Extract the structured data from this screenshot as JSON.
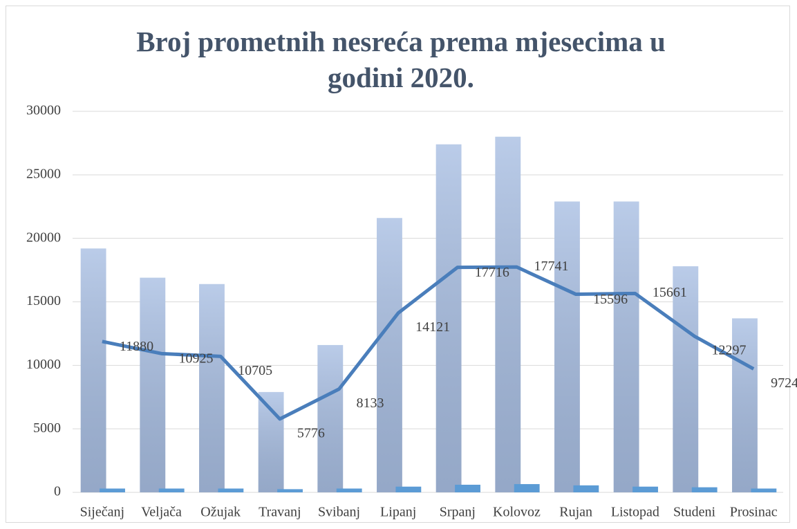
{
  "chart_data": {
    "type": "bar_line",
    "title": "Broj prometnih nesreća prema mjesecima u godini 2020.",
    "categories": [
      "Siječanj",
      "Veljača",
      "Ožujak",
      "Travanj",
      "Svibanj",
      "Lipanj",
      "Srpanj",
      "Kolovoz",
      "Rujan",
      "Listopad",
      "Studeni",
      "Prosinac"
    ],
    "series": [
      {
        "type": "bar",
        "color": "#a9bfe3",
        "values": [
          19200,
          16900,
          16400,
          7900,
          11600,
          21600,
          27400,
          28000,
          22900,
          22900,
          17800,
          13700
        ]
      },
      {
        "type": "bar",
        "color": "#5b9bd5",
        "values": [
          300,
          300,
          300,
          250,
          300,
          450,
          600,
          650,
          550,
          450,
          400,
          300
        ]
      },
      {
        "type": "line",
        "color": "#4a7ebb",
        "values": [
          11880,
          10925,
          10705,
          5776,
          8133,
          14121,
          17716,
          17741,
          15596,
          15661,
          12297,
          9724
        ],
        "data_labels": true
      }
    ],
    "ylim": [
      0,
      30000
    ],
    "yticks": [
      0,
      5000,
      10000,
      15000,
      20000,
      25000,
      30000
    ],
    "grid": true
  }
}
